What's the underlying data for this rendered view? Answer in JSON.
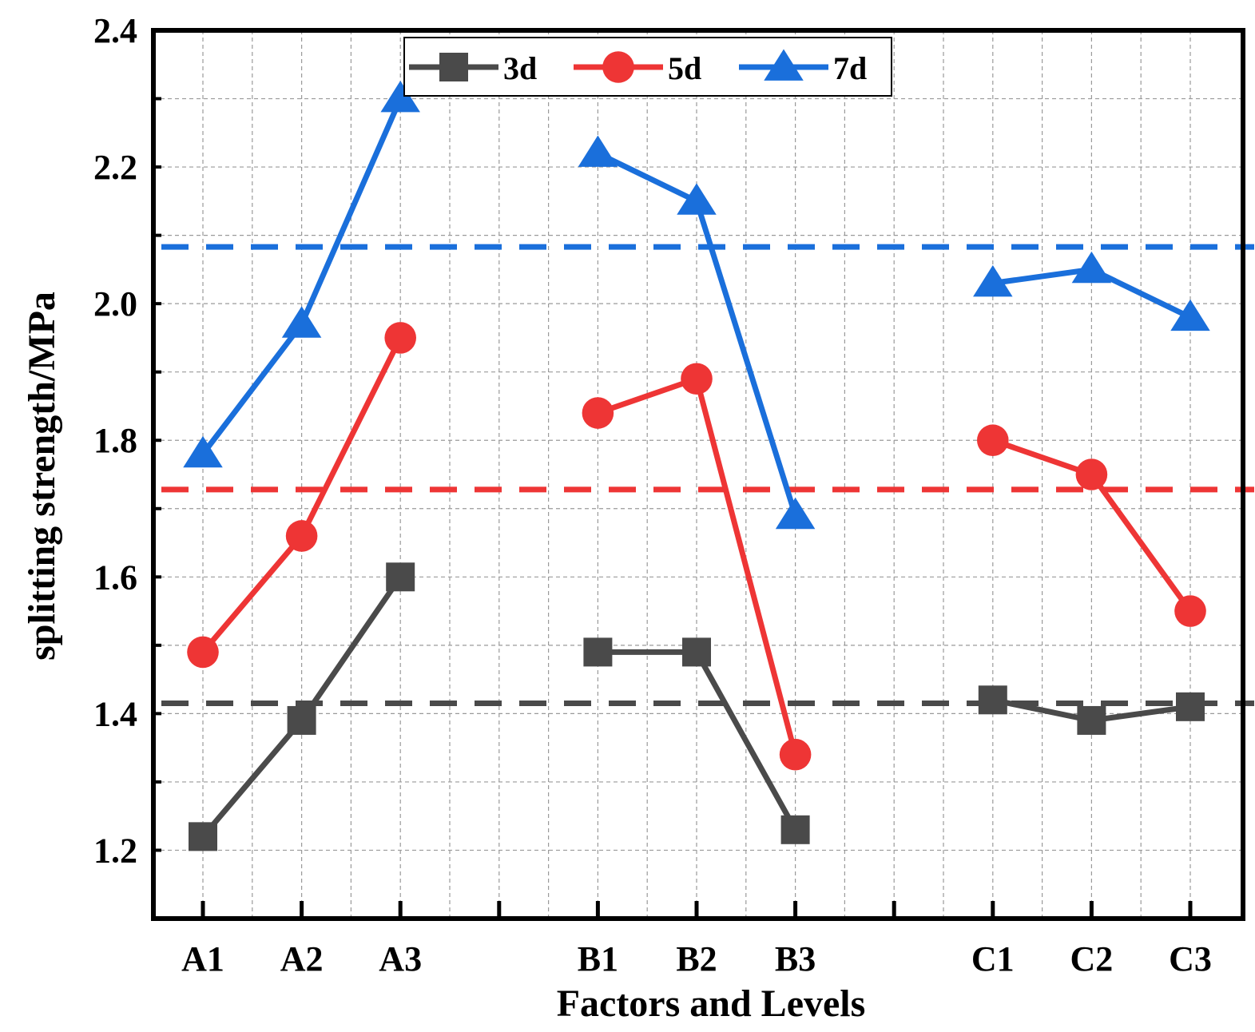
{
  "chart_data": {
    "type": "line",
    "title": "",
    "xlabel": "Factors and Levels",
    "ylabel": "splitting strength/MPa",
    "ylim": [
      1.1,
      2.4
    ],
    "yticks": [
      "1.2",
      "1.4",
      "1.6",
      "1.8",
      "2.0",
      "2.2",
      "2.4"
    ],
    "grid": true,
    "legend_position": "top-center",
    "groups": [
      {
        "name": "A",
        "categories": [
          "A1",
          "A2",
          "A3"
        ]
      },
      {
        "name": "B",
        "categories": [
          "B1",
          "B2",
          "B3"
        ]
      },
      {
        "name": "C",
        "categories": [
          "C1",
          "C2",
          "C3"
        ]
      }
    ],
    "series": [
      {
        "name": "3d",
        "color": "#4a4a4a",
        "marker": "square",
        "mean": 1.415,
        "groups": [
          [
            1.22,
            1.39,
            1.6
          ],
          [
            1.49,
            1.49,
            1.23
          ],
          [
            1.42,
            1.39,
            1.41
          ]
        ]
      },
      {
        "name": "5d",
        "color": "#ee3535",
        "marker": "circle",
        "mean": 1.728,
        "groups": [
          [
            1.49,
            1.66,
            1.95
          ],
          [
            1.84,
            1.89,
            1.34
          ],
          [
            1.8,
            1.75,
            1.55
          ]
        ]
      },
      {
        "name": "7d",
        "color": "#1a6fdb",
        "marker": "triangle",
        "mean": 2.083,
        "groups": [
          [
            1.78,
            1.97,
            2.3
          ],
          [
            2.22,
            2.15,
            1.69
          ],
          [
            2.03,
            2.05,
            1.98
          ]
        ]
      }
    ]
  }
}
